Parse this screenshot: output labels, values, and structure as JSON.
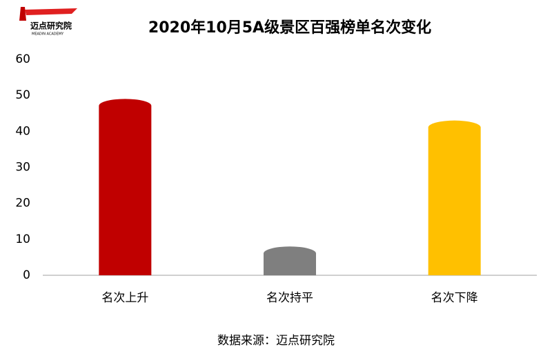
{
  "chart_data": {
    "type": "bar",
    "title": "2020年10月5A级景区百强榜单名次变化",
    "logo": "迈点研究院",
    "logo_subtitle": "MEADIN ACADEMY",
    "categories": [
      "名次上升",
      "名次持平",
      "名次下降"
    ],
    "values": [
      49,
      8,
      43
    ],
    "colors": [
      "#c00000",
      "#7f7f7f",
      "#ffc000"
    ],
    "ylim": [
      0,
      60
    ],
    "yticks": [
      0,
      10,
      20,
      30,
      40,
      50,
      60
    ],
    "grid": false,
    "source": "数据来源：迈点研究院"
  }
}
